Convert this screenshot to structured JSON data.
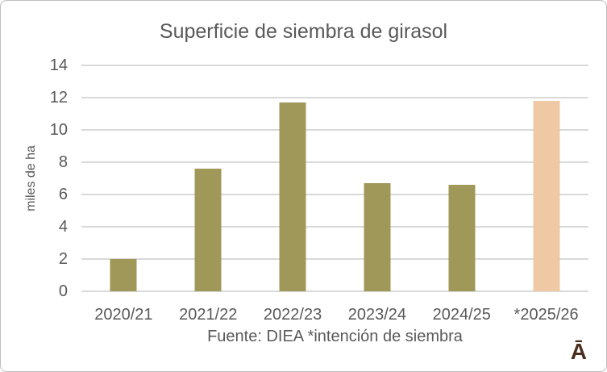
{
  "footer": "Fuente: DIEA *intención de siembra",
  "logo": "Ā",
  "colors": {
    "bar_default": "#a09858",
    "bar_highlight": "#eec9a3",
    "gridline": "#d9d9d9",
    "text": "#595959",
    "logo": "#4a2e1d",
    "frame_border": "#bdbdbd"
  },
  "chart_data": {
    "type": "bar",
    "title": "Superficie de siembra de girasol",
    "xlabel": "",
    "ylabel": "miles de ha",
    "categories": [
      "2020/21",
      "2021/22",
      "2022/23",
      "2023/24",
      "2024/25",
      "*2025/26"
    ],
    "values": [
      2.0,
      7.6,
      11.7,
      6.7,
      6.6,
      11.8
    ],
    "bar_colors": [
      "#a09858",
      "#a09858",
      "#a09858",
      "#a09858",
      "#a09858",
      "#eec9a3"
    ],
    "highlighted_category": "*2025/26",
    "ylim": [
      0,
      14
    ],
    "ytick_interval": 2,
    "yticks": [
      0,
      2,
      4,
      6,
      8,
      10,
      12,
      14
    ],
    "grid": true,
    "legend": false,
    "annotation": "Fuente: DIEA *intención de siembra"
  }
}
